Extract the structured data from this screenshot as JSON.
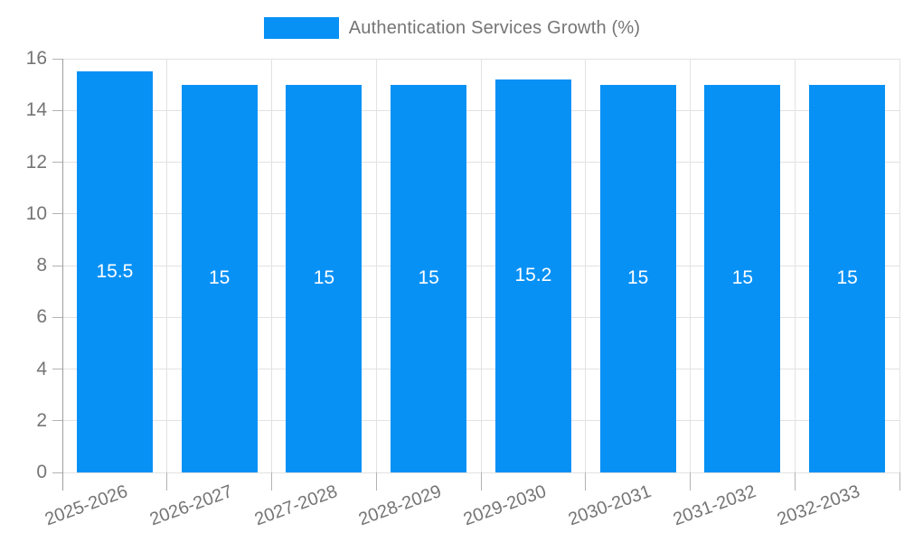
{
  "chart_data": {
    "type": "bar",
    "title": "Authentication Services Growth (%)",
    "categories": [
      "2025-2026",
      "2026-2027",
      "2027-2028",
      "2028-2029",
      "2029-2030",
      "2030-2031",
      "2031-2032",
      "2032-2033"
    ],
    "values": [
      15.5,
      15,
      15,
      15,
      15.2,
      15,
      15,
      15
    ],
    "value_labels": [
      "15.5",
      "15",
      "15",
      "15",
      "15.2",
      "15",
      "15",
      "15"
    ],
    "xlabel": "",
    "ylabel": "",
    "ylim": [
      0,
      16
    ],
    "ytick_step": 2,
    "yticks": [
      0,
      2,
      4,
      6,
      8,
      10,
      12,
      14,
      16
    ],
    "grid": true,
    "legend_position": "top-center",
    "colors": {
      "bar": "#0891f5",
      "axis_text": "#757575",
      "grid_line": "#e2e2e2",
      "axis_line": "#9e9e9e",
      "tick_mark": "#b3b3b3",
      "value_text": "#ffffff",
      "background": "#ffffff"
    }
  }
}
